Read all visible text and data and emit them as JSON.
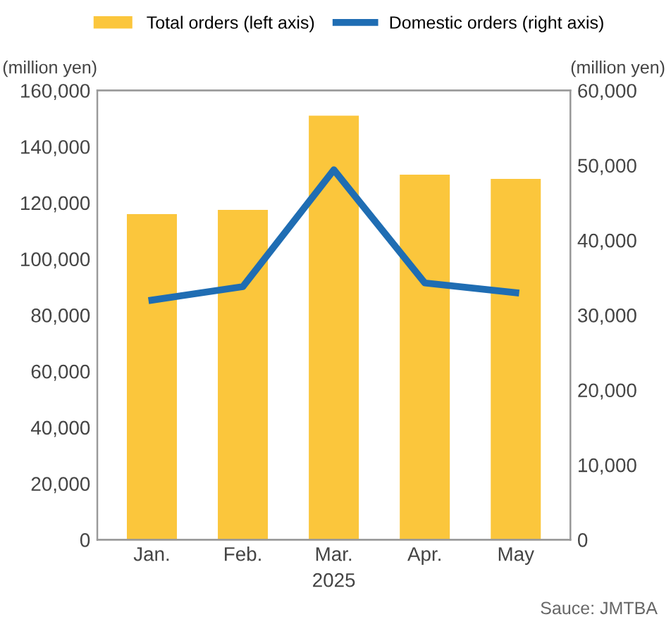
{
  "chart_data": {
    "type": "bar",
    "categories": [
      "Jan.",
      "Feb.",
      "Mar.",
      "Apr.",
      "May"
    ],
    "series": [
      {
        "name": "Total orders (left axis)",
        "color": "#fbc63c",
        "values": [
          116000,
          117500,
          151000,
          130000,
          128500
        ]
      },
      {
        "name": "Domestic orders (right axis)",
        "type": "line",
        "axis": "y2",
        "color": "#1f6db3",
        "values": [
          32000,
          33800,
          49400,
          34300,
          33000
        ]
      }
    ],
    "ylabel": "(million yen)",
    "y2label": "(million yen)",
    "xlabel": "2025",
    "ylim": [
      0,
      160000
    ],
    "yticks": [
      {
        "value": 0,
        "label": "0"
      },
      {
        "value": 20000,
        "label": "20,000"
      },
      {
        "value": 40000,
        "label": "40,000"
      },
      {
        "value": 60000,
        "label": "60,000"
      },
      {
        "value": 80000,
        "label": "80,000"
      },
      {
        "value": 100000,
        "label": "100,000"
      },
      {
        "value": 120000,
        "label": "120,000"
      },
      {
        "value": 140000,
        "label": "140,000"
      },
      {
        "value": 160000,
        "label": "160,000"
      }
    ],
    "y2lim": [
      0,
      60000
    ],
    "y2ticks": [
      {
        "value": 0,
        "label": "0"
      },
      {
        "value": 10000,
        "label": "10,000"
      },
      {
        "value": 20000,
        "label": "20,000"
      },
      {
        "value": 30000,
        "label": "30,000"
      },
      {
        "value": 40000,
        "label": "40,000"
      },
      {
        "value": 50000,
        "label": "50,000"
      },
      {
        "value": 60000,
        "label": "60,000"
      }
    ],
    "annotations": [
      "Sauce: JMTBA"
    ],
    "legend": "top",
    "grid": false,
    "marker": "none"
  }
}
